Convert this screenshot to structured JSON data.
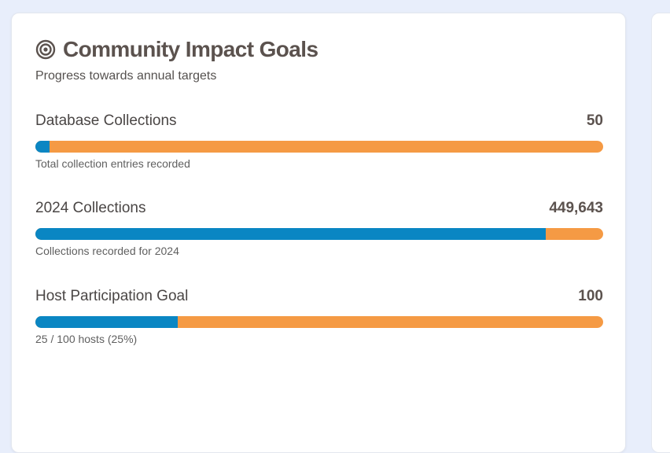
{
  "card": {
    "title": "Community Impact Goals",
    "subtitle": "Progress towards annual targets",
    "icon": "target-icon"
  },
  "goals": [
    {
      "label": "Database Collections",
      "value": "50",
      "description": "Total collection entries recorded",
      "progress": 0.025
    },
    {
      "label": "2024 Collections",
      "value": "449,643",
      "description": "Collections recorded for 2024",
      "progress": 0.899
    },
    {
      "label": "Host Participation Goal",
      "value": "100",
      "description": "25 / 100 hosts (25%)",
      "progress": 0.25
    }
  ],
  "colors": {
    "fill": "#0a86c3",
    "track": "#f59a44",
    "title": "#5b524e"
  }
}
